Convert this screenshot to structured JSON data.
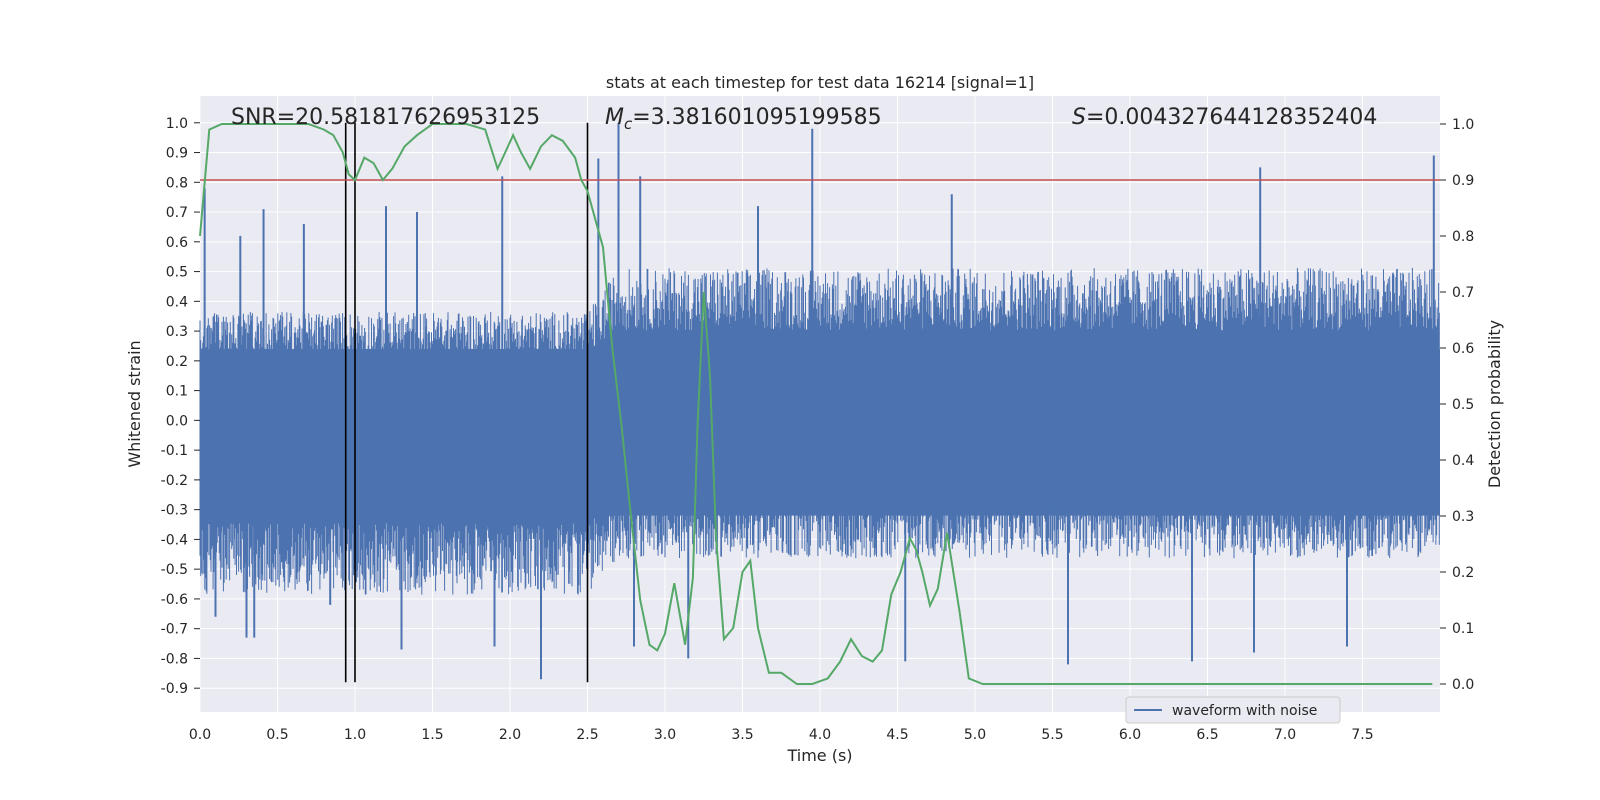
{
  "chart_data": {
    "type": "line",
    "title": "stats at each timestep for test data 16214 [signal=1]",
    "xlabel": "Time (s)",
    "ylabel_left": "Whitened strain",
    "ylabel_right": "Detection probability",
    "xlim": [
      0.0,
      8.0
    ],
    "ylim_left": [
      -0.98,
      1.09
    ],
    "ylim_right": [
      -0.05,
      1.05
    ],
    "x_ticks": [
      0.0,
      0.5,
      1.0,
      1.5,
      2.0,
      2.5,
      3.0,
      3.5,
      4.0,
      4.5,
      5.0,
      5.5,
      6.0,
      6.5,
      7.0,
      7.5
    ],
    "x_tick_labels": [
      "0.0",
      "0.5",
      "1.0",
      "1.5",
      "2.0",
      "2.5",
      "3.0",
      "3.5",
      "4.0",
      "4.5",
      "5.0",
      "5.5",
      "6.0",
      "6.5",
      "7.0",
      "7.5"
    ],
    "y_left_ticks": [
      1.0,
      0.9,
      0.8,
      0.7,
      0.6,
      0.5,
      0.4,
      0.3,
      0.2,
      0.1,
      0.0,
      -0.1,
      -0.2,
      -0.3,
      -0.4,
      -0.5,
      -0.6,
      -0.7,
      -0.8,
      -0.9
    ],
    "y_left_tick_labels": [
      "1.0",
      "0.9",
      "0.8",
      "0.7",
      "0.6",
      "0.5",
      "0.4",
      "0.3",
      "0.2",
      "0.1",
      "0.0",
      "-0.1",
      "-0.2",
      "-0.3",
      "-0.4",
      "-0.5",
      "-0.6",
      "-0.7",
      "-0.8",
      "-0.9"
    ],
    "y_right_ticks": [
      1.0,
      0.9,
      0.8,
      0.7,
      0.6,
      0.5,
      0.4,
      0.3,
      0.2,
      0.1,
      0.0
    ],
    "y_right_tick_labels": [
      "1.0",
      "0.9",
      "0.8",
      "0.7",
      "0.6",
      "0.5",
      "0.4",
      "0.3",
      "0.2",
      "0.1",
      "0.0"
    ],
    "grid": true,
    "legend": {
      "placement": "bottom-right",
      "entries": [
        "waveform with noise"
      ]
    },
    "annotations": {
      "snr": "SNR=20.581817626953125",
      "mc_symbol": "M",
      "mc_sub": "c",
      "mc_value": "=3.381601095199585",
      "s_symbol": "S",
      "s_value": "=0.004327644128352404"
    },
    "threshold": {
      "axis": "right",
      "value": 0.9,
      "color": "#c44e52"
    },
    "vlines": {
      "x": [
        0.94,
        1.0,
        2.5
      ],
      "ymin": -0.88,
      "ymax": 1.0,
      "color": "#000000"
    },
    "series": [
      {
        "name": "waveform with noise",
        "axis": "left",
        "color": "#4c72b0",
        "envelope_x": [
          0.0,
          2.5,
          2.7,
          8.0
        ],
        "envelope_upper": [
          0.3,
          0.3,
          0.42,
          0.42
        ],
        "envelope_lower": [
          -0.48,
          -0.48,
          -0.38,
          -0.38
        ],
        "spikes_up": [
          [
            0.03,
            0.78
          ],
          [
            0.26,
            0.62
          ],
          [
            0.41,
            0.71
          ],
          [
            0.67,
            0.66
          ],
          [
            1.2,
            0.72
          ],
          [
            1.4,
            0.7
          ],
          [
            1.95,
            0.82
          ],
          [
            2.57,
            0.88
          ],
          [
            2.7,
            1.0
          ],
          [
            2.84,
            0.82
          ],
          [
            3.6,
            0.72
          ],
          [
            3.95,
            0.98
          ],
          [
            4.85,
            0.76
          ],
          [
            6.84,
            0.85
          ],
          [
            7.96,
            0.89
          ]
        ],
        "spikes_down": [
          [
            0.1,
            -0.66
          ],
          [
            0.3,
            -0.73
          ],
          [
            0.35,
            -0.73
          ],
          [
            0.84,
            -0.62
          ],
          [
            1.3,
            -0.77
          ],
          [
            1.9,
            -0.76
          ],
          [
            2.2,
            -0.87
          ],
          [
            2.8,
            -0.76
          ],
          [
            3.15,
            -0.8
          ],
          [
            4.55,
            -0.81
          ],
          [
            5.6,
            -0.82
          ],
          [
            6.4,
            -0.81
          ],
          [
            6.8,
            -0.78
          ],
          [
            7.4,
            -0.76
          ]
        ]
      },
      {
        "name": "",
        "axis": "right",
        "color": "#55a868",
        "x": [
          0.0,
          0.06,
          0.14,
          0.3,
          0.5,
          0.7,
          0.8,
          0.86,
          0.92,
          0.96,
          1.0,
          1.06,
          1.12,
          1.18,
          1.24,
          1.32,
          1.4,
          1.5,
          1.6,
          1.72,
          1.84,
          1.92,
          1.97,
          2.02,
          2.07,
          2.13,
          2.2,
          2.27,
          2.34,
          2.42,
          2.46,
          2.5,
          2.54,
          2.6,
          2.66,
          2.72,
          2.78,
          2.84,
          2.9,
          2.95,
          3.0,
          3.06,
          3.13,
          3.18,
          3.21,
          3.25,
          3.29,
          3.33,
          3.38,
          3.44,
          3.5,
          3.55,
          3.6,
          3.67,
          3.75,
          3.85,
          3.95,
          4.05,
          4.13,
          4.2,
          4.27,
          4.34,
          4.4,
          4.46,
          4.52,
          4.58,
          4.62,
          4.66,
          4.71,
          4.76,
          4.82,
          4.9,
          4.96,
          5.05,
          5.2,
          5.5,
          6.0,
          6.5,
          7.0,
          7.5,
          7.95
        ],
        "y": [
          0.8,
          0.99,
          1.0,
          1.0,
          1.0,
          1.0,
          0.99,
          0.98,
          0.95,
          0.91,
          0.9,
          0.94,
          0.93,
          0.9,
          0.92,
          0.96,
          0.98,
          1.0,
          1.0,
          1.0,
          0.99,
          0.92,
          0.95,
          0.98,
          0.95,
          0.92,
          0.96,
          0.98,
          0.97,
          0.94,
          0.9,
          0.88,
          0.84,
          0.78,
          0.6,
          0.46,
          0.3,
          0.15,
          0.07,
          0.06,
          0.09,
          0.18,
          0.07,
          0.19,
          0.46,
          0.7,
          0.55,
          0.26,
          0.08,
          0.1,
          0.2,
          0.22,
          0.1,
          0.02,
          0.02,
          0.0,
          0.0,
          0.01,
          0.04,
          0.08,
          0.05,
          0.04,
          0.06,
          0.16,
          0.2,
          0.26,
          0.24,
          0.2,
          0.14,
          0.17,
          0.27,
          0.13,
          0.01,
          0.0,
          0.0,
          0.0,
          0.0,
          0.0,
          0.0,
          0.0,
          0.0
        ]
      }
    ]
  }
}
